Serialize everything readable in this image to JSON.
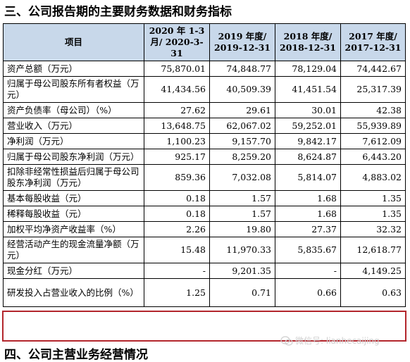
{
  "headings": {
    "section3": "三、公司报告期的主要财务数据和财务指标",
    "section4": "四、公司主营业务经营情况"
  },
  "table": {
    "header": {
      "item": "项目",
      "cols": [
        "2020 年 1-3 月/ 2020-3-31",
        "2019 年度/ 2019-12-31",
        "2018 年度/ 2018-12-31",
        "2017 年度/ 2017-12-31"
      ]
    },
    "rows": [
      {
        "label": "资产总额（万元）",
        "values": [
          "75,870.01",
          "74,848.77",
          "78,129.04",
          "74,442.67"
        ]
      },
      {
        "label": "归属于母公司股东所有者权益（万元）",
        "values": [
          "41,434.56",
          "40,509.39",
          "41,451.54",
          "25,317.39"
        ]
      },
      {
        "label": "资产负债率（母公司）（%）",
        "values": [
          "27.62",
          "29.61",
          "30.01",
          "42.38"
        ]
      },
      {
        "label": "营业收入（万元）",
        "values": [
          "13,648.75",
          "62,067.02",
          "59,252.01",
          "55,939.89"
        ]
      },
      {
        "label": "净利润（万元）",
        "values": [
          "1,100.23",
          "9,157.70",
          "9,842.17",
          "7,612.09"
        ]
      },
      {
        "label": "归属于母公司股东净利润（万元）",
        "values": [
          "925.17",
          "8,259.20",
          "8,624.87",
          "6,443.20"
        ]
      },
      {
        "label": "扣除非经常性损益后归属于母公司股东净利润（万元）",
        "values": [
          "859.36",
          "7,032.08",
          "5,814.07",
          "4,883.02"
        ]
      },
      {
        "label": "基本每股收益（元）",
        "values": [
          "0.18",
          "1.57",
          "1.68",
          "1.35"
        ]
      },
      {
        "label": "稀释每股收益（元）",
        "values": [
          "0.18",
          "1.57",
          "1.68",
          "1.35"
        ]
      },
      {
        "label": "加权平均净资产收益率（%）",
        "values": [
          "2.26",
          "19.80",
          "27.37",
          "32.32"
        ]
      },
      {
        "label": "经营活动产生的现金流量净额（万元）",
        "values": [
          "15.48",
          "11,970.33",
          "5,835.67",
          "12,618.77"
        ]
      },
      {
        "label": "现金分红（万元）",
        "values": [
          "-",
          "9,201.35",
          "-",
          "4,149.25"
        ]
      },
      {
        "label": "研发投入占营业收入的比例（%）",
        "values": [
          "1.25",
          "0.71",
          "0.66",
          "0.63"
        ]
      }
    ]
  },
  "watermark": "微信号: lianhecaijing",
  "colors": {
    "header_bg": "#c8d8ea",
    "highlight_border": "#b3262d"
  }
}
